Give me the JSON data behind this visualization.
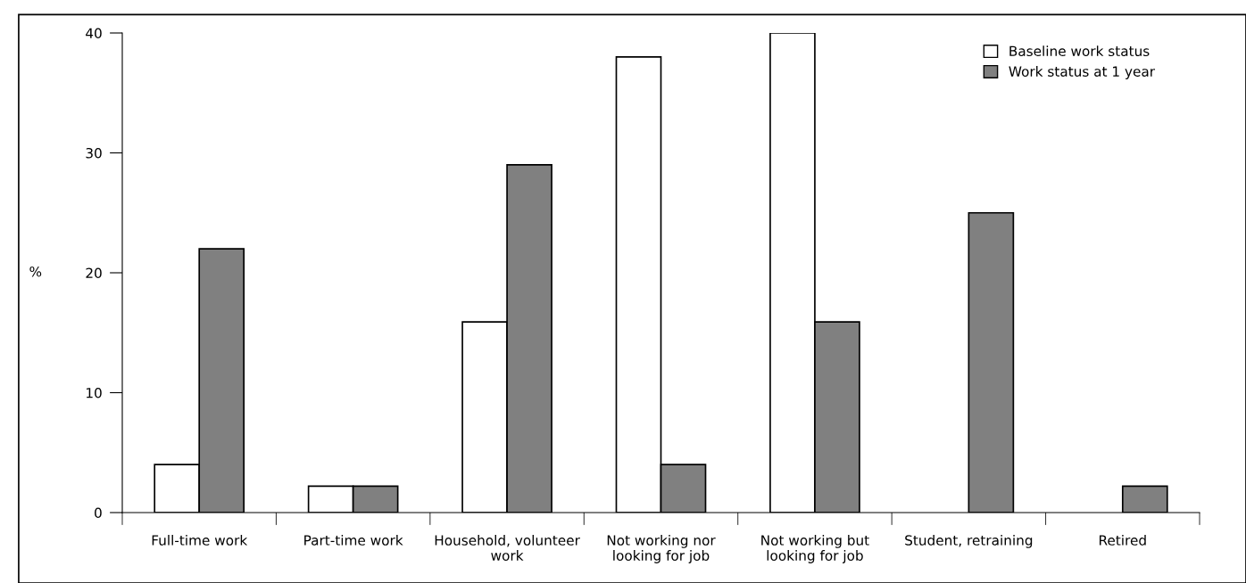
{
  "chart_data": {
    "type": "bar",
    "ylabel": "%",
    "categories": [
      "Full-time work",
      "Part-time work",
      "Household, volunteer\nwork",
      "Not working nor\nlooking for job",
      "Not working but\nlooking for job",
      "Student, retraining",
      "Retired"
    ],
    "series": [
      {
        "name": "Baseline work status",
        "color": "#ffffff",
        "values": [
          4,
          2.2,
          15.9,
          38,
          40,
          null,
          null
        ]
      },
      {
        "name": "Work status at 1 year",
        "color": "#808080",
        "values": [
          22,
          2.2,
          29,
          4,
          15.9,
          25,
          2.2
        ]
      }
    ],
    "ylim": [
      0,
      40
    ],
    "yticks": [
      0,
      10,
      20,
      30,
      40
    ],
    "grid": false,
    "legend": "top right"
  }
}
